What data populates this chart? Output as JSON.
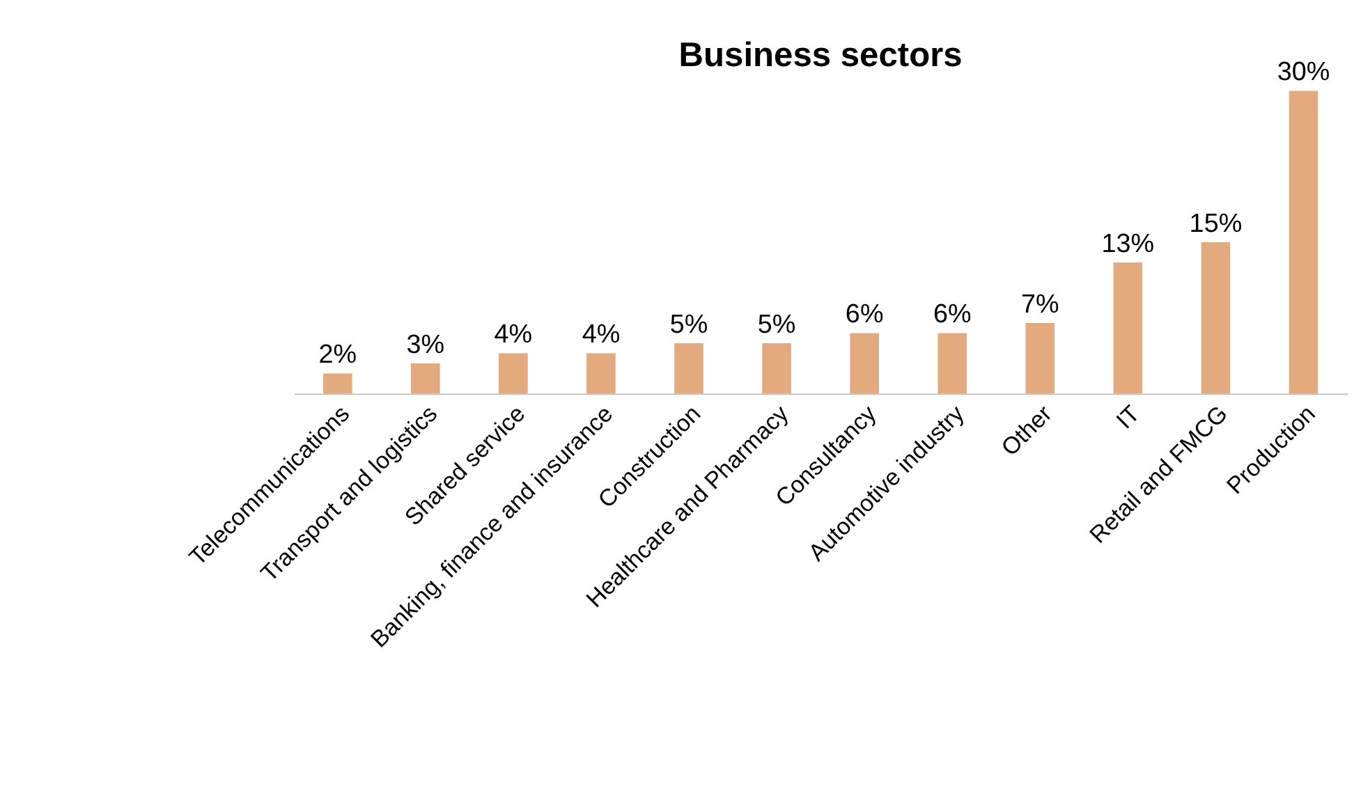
{
  "chart_data": {
    "type": "bar",
    "title": "Business sectors",
    "categories": [
      "Telecommunications",
      "Transport and logistics",
      "Shared service",
      "Banking, finance and insurance",
      "Construction",
      "Healthcare and Pharmacy",
      "Consultancy",
      "Automotive industry",
      "Other",
      "IT",
      "Retail and FMCG",
      "Production"
    ],
    "values": [
      2,
      3,
      4,
      4,
      5,
      5,
      6,
      6,
      7,
      13,
      15,
      30
    ],
    "value_labels": [
      "2%",
      "3%",
      "4%",
      "4%",
      "5%",
      "5%",
      "6%",
      "6%",
      "7%",
      "13%",
      "15%",
      "30%"
    ],
    "color": "#e3aa7f",
    "tick_labels": "x",
    "grid": false
  }
}
